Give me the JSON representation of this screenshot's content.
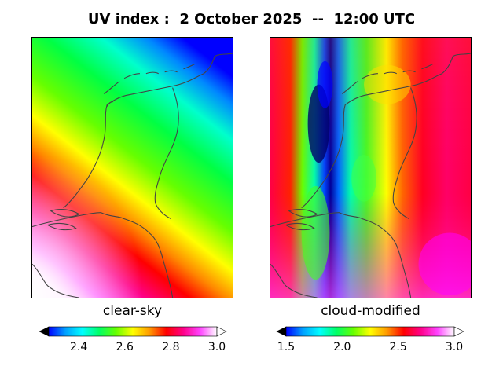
{
  "title": "UV index :  2 October 2025  --  12:00 UTC",
  "colors": {
    "spectrum": [
      "#000000",
      "#0000ff",
      "#00a0ff",
      "#00ffff",
      "#00ff66",
      "#66ff00",
      "#ffff00",
      "#ff9900",
      "#ff0000",
      "#ff0088",
      "#ff44ff",
      "#ffffff"
    ],
    "coastline": "#444444"
  },
  "panels": [
    {
      "label": "clear-sky",
      "colorbar": {
        "min": 2.27,
        "max": 3.0,
        "ticks": [
          "2.4",
          "2.6",
          "2.8",
          "3.0"
        ],
        "tick_values": [
          2.4,
          2.6,
          2.8,
          3.0
        ]
      }
    },
    {
      "label": "cloud-modified",
      "colorbar": {
        "min": 1.5,
        "max": 3.0,
        "ticks": [
          "1.5",
          "2.0",
          "2.5",
          "3.0"
        ],
        "tick_values": [
          1.5,
          2.0,
          2.5,
          3.0
        ]
      }
    }
  ]
}
